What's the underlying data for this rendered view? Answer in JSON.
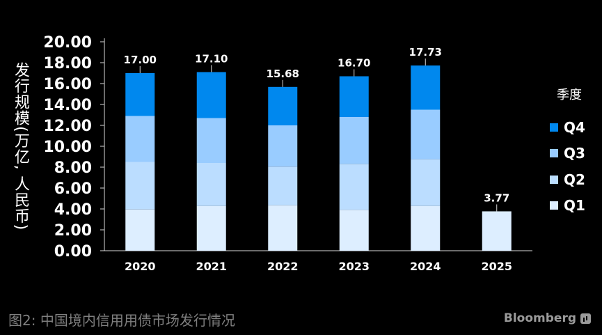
{
  "chart_data": {
    "type": "bar",
    "stacked": true,
    "categories": [
      "2020",
      "2021",
      "2022",
      "2023",
      "2024",
      "2025"
    ],
    "series": [
      {
        "name": "Q1",
        "color": "#ddeeff",
        "values": [
          3.95,
          4.28,
          4.35,
          3.92,
          4.28,
          3.77
        ]
      },
      {
        "name": "Q2",
        "color": "#bbddff",
        "values": [
          4.55,
          4.12,
          3.7,
          4.4,
          4.48,
          null
        ]
      },
      {
        "name": "Q3",
        "color": "#99ccff",
        "values": [
          4.4,
          4.3,
          3.95,
          4.48,
          4.74,
          null
        ]
      },
      {
        "name": "Q4",
        "color": "#0088ee",
        "values": [
          4.1,
          4.4,
          3.68,
          3.9,
          4.23,
          null
        ]
      }
    ],
    "totals": [
      17.0,
      17.1,
      15.68,
      16.7,
      17.73,
      3.77
    ],
    "total_labels": [
      "17.00",
      "17.10",
      "15.68",
      "16.70",
      "17.73",
      "3.77"
    ],
    "ylabel": "发行规模(万亿, 人民币)",
    "ylim": [
      0,
      20
    ],
    "yticks": [
      "0.00",
      "2.00",
      "4.00",
      "6.00",
      "8.00",
      "10.00",
      "12.00",
      "14.00",
      "16.00",
      "18.00",
      "20.00"
    ],
    "legend_title": "季度",
    "legend_order": [
      "Q4",
      "Q3",
      "Q2",
      "Q1"
    ],
    "legend_position": "right",
    "grid": false
  },
  "footer": {
    "title": "图2: 中国境内信用用债市场发行情况",
    "brand": "Bloomberg"
  }
}
